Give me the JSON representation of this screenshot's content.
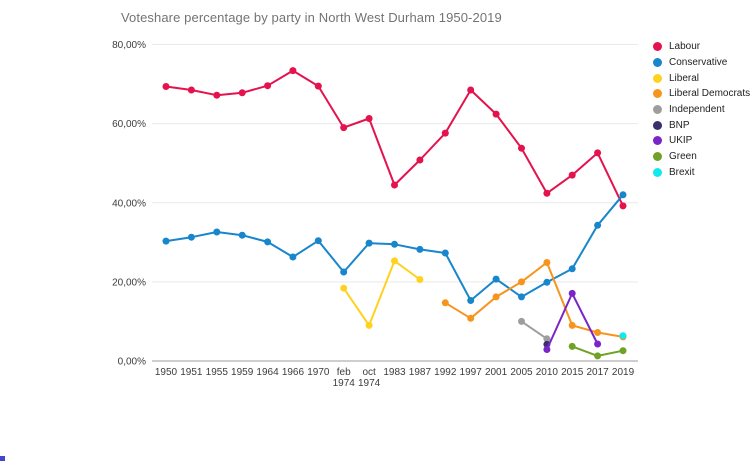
{
  "title": "Voteshare percentage by party in North West Durham 1950-2019",
  "chart_data": {
    "type": "line",
    "title": "Voteshare percentage by party in North West Durham 1950-2019",
    "xlabel": "",
    "ylabel": "",
    "ylim": [
      0,
      80
    ],
    "grid": true,
    "legend_position": "right",
    "y_ticks": [
      {
        "value": 0,
        "label": "0,00%"
      },
      {
        "value": 20,
        "label": "20,00%"
      },
      {
        "value": 40,
        "label": "40,00%"
      },
      {
        "value": 60,
        "label": "60,00%"
      },
      {
        "value": 80,
        "label": "80,00%"
      }
    ],
    "categories": [
      "1950",
      "1951",
      "1955",
      "1959",
      "1964",
      "1966",
      "1970",
      "feb 1974",
      "oct 1974",
      "1983",
      "1987",
      "1992",
      "1997",
      "2001",
      "2005",
      "2010",
      "2015",
      "2017",
      "2019"
    ],
    "series": [
      {
        "name": "Labour",
        "color": "#e4124d",
        "values": [
          69.4,
          68.5,
          67.2,
          67.8,
          69.6,
          73.4,
          69.5,
          59.0,
          61.3,
          44.5,
          50.8,
          57.6,
          68.5,
          62.4,
          53.8,
          42.4,
          47.0,
          52.6,
          39.2
        ]
      },
      {
        "name": "Conservative",
        "color": "#1886cc",
        "values": [
          30.3,
          31.3,
          32.6,
          31.8,
          30.1,
          26.3,
          30.4,
          22.5,
          29.8,
          29.5,
          28.2,
          27.3,
          15.3,
          20.7,
          16.2,
          19.9,
          23.3,
          34.3,
          42.0
        ]
      },
      {
        "name": "Liberal",
        "color": "#ffd21e",
        "values": [
          null,
          null,
          null,
          null,
          null,
          null,
          null,
          18.4,
          9.0,
          25.3,
          20.6,
          null,
          null,
          null,
          null,
          null,
          null,
          null,
          null
        ]
      },
      {
        "name": "Liberal Democrats",
        "color": "#f7941d",
        "values": [
          null,
          null,
          null,
          null,
          null,
          null,
          null,
          null,
          null,
          null,
          null,
          14.7,
          10.8,
          16.2,
          20.0,
          24.9,
          9.0,
          7.2,
          6.1
        ]
      },
      {
        "name": "Independent",
        "color": "#9e9e9e",
        "values": [
          null,
          null,
          null,
          null,
          null,
          null,
          null,
          null,
          null,
          null,
          null,
          null,
          null,
          null,
          10.0,
          5.6,
          null,
          null,
          null
        ]
      },
      {
        "name": "BNP",
        "color": "#38316e",
        "values": [
          null,
          null,
          null,
          null,
          null,
          null,
          null,
          null,
          null,
          null,
          null,
          null,
          null,
          null,
          null,
          4.2,
          null,
          null,
          null
        ]
      },
      {
        "name": "UKIP",
        "color": "#7a25c7",
        "values": [
          null,
          null,
          null,
          null,
          null,
          null,
          null,
          null,
          null,
          null,
          null,
          null,
          null,
          null,
          null,
          2.9,
          17.1,
          4.3,
          null
        ]
      },
      {
        "name": "Green",
        "color": "#6fa226",
        "values": [
          null,
          null,
          null,
          null,
          null,
          null,
          null,
          null,
          null,
          null,
          null,
          null,
          null,
          null,
          null,
          null,
          3.7,
          1.3,
          2.6
        ]
      },
      {
        "name": "Brexit",
        "color": "#11e9f0",
        "values": [
          null,
          null,
          null,
          null,
          null,
          null,
          null,
          null,
          null,
          null,
          null,
          null,
          null,
          null,
          null,
          null,
          null,
          null,
          6.4
        ]
      }
    ]
  }
}
